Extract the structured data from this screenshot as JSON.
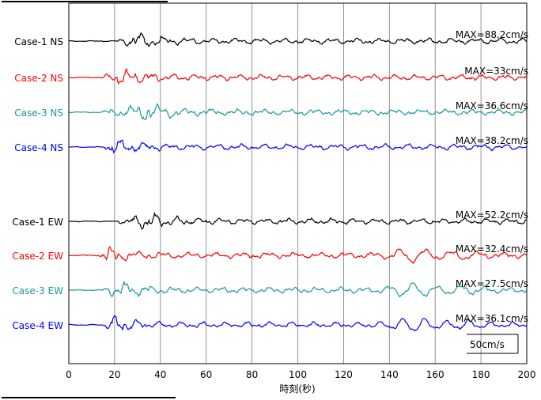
{
  "chart_data": {
    "type": "line",
    "xlabel": "時刻(秒)",
    "ylabel": "",
    "xlim": [
      0,
      200
    ],
    "xticks": [
      0,
      20,
      40,
      60,
      80,
      100,
      120,
      140,
      160,
      180,
      200
    ],
    "grid": "vertical",
    "scale_bar_label": "50cm/s",
    "series": [
      {
        "name": "Case-1 NS",
        "max_label": "MAX=88.2cm/s",
        "color": "#000000",
        "onset": 22,
        "peak_t": 30,
        "seed": 1
      },
      {
        "name": "Case-2 NS",
        "max_label": "MAX=33cm/s",
        "color": "#ff0000",
        "onset": 14,
        "peak_t": 24,
        "seed": 2
      },
      {
        "name": "Case-3 NS",
        "max_label": "MAX=36.6cm/s",
        "color": "#1a9a9a",
        "onset": 15,
        "peak_t": 36,
        "seed": 3
      },
      {
        "name": "Case-4 NS",
        "max_label": "MAX=38.2cm/s",
        "color": "#0000ff",
        "onset": 16,
        "peak_t": 19,
        "seed": 4
      },
      {
        "name": "Case-1 EW",
        "max_label": "MAX=52.2cm/s",
        "color": "#000000",
        "onset": 22,
        "peak_t": 35,
        "seed": 5
      },
      {
        "name": "Case-2 EW",
        "max_label": "MAX=32.4cm/s",
        "color": "#ff0000",
        "onset": 13,
        "peak_t": 17,
        "seed": 6
      },
      {
        "name": "Case-3 EW",
        "max_label": "MAX=27.5cm/s",
        "color": "#1a9a9a",
        "onset": 15,
        "peak_t": 23,
        "seed": 7
      },
      {
        "name": "Case-4 EW",
        "max_label": "MAX=36.1cm/s",
        "color": "#0000ff",
        "onset": 15,
        "peak_t": 20,
        "seed": 8
      }
    ]
  }
}
